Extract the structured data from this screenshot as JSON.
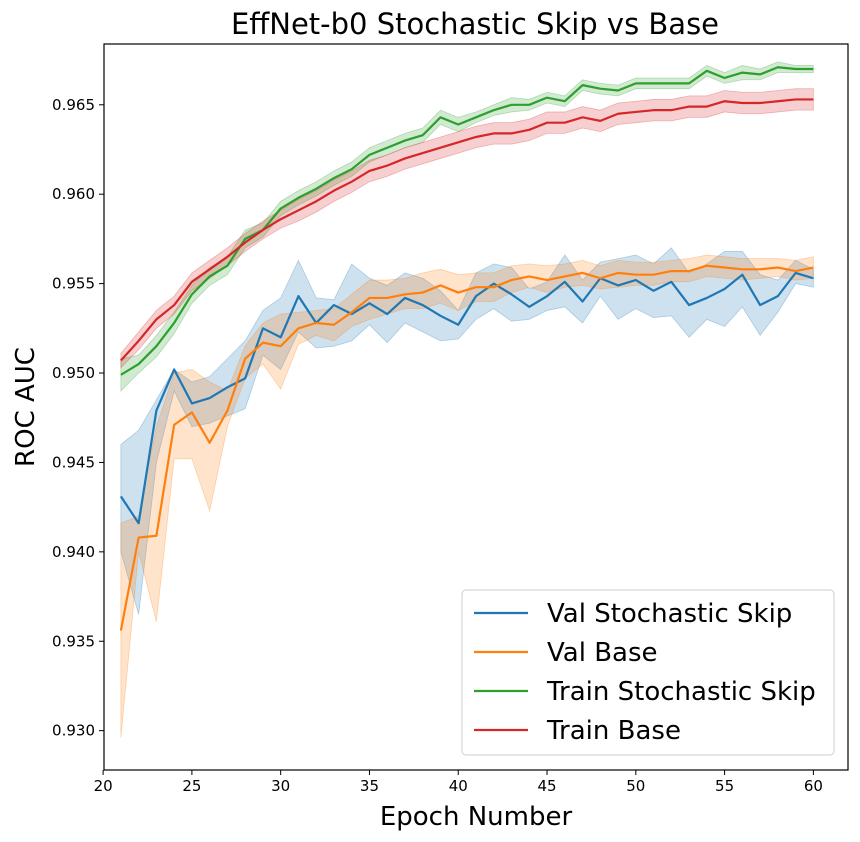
{
  "chart_data": {
    "type": "line",
    "title": "EffNet-b0 Stochastic Skip vs Base",
    "xlabel": "Epoch Number",
    "ylabel": "ROC AUC",
    "xlim": [
      20.05,
      61.95
    ],
    "ylim": [
      0.9278,
      0.9684
    ],
    "xticks": [
      20,
      25,
      30,
      35,
      40,
      45,
      50,
      55,
      60
    ],
    "yticks": [
      0.93,
      0.935,
      0.94,
      0.945,
      0.95,
      0.955,
      0.96,
      0.965
    ],
    "ytick_labels": [
      "0.930",
      "0.935",
      "0.940",
      "0.945",
      "0.950",
      "0.955",
      "0.960",
      "0.965"
    ],
    "legend_position": "lower-right",
    "x": [
      21,
      22,
      23,
      24,
      25,
      26,
      27,
      28,
      29,
      30,
      31,
      32,
      33,
      34,
      35,
      36,
      37,
      38,
      39,
      40,
      41,
      42,
      43,
      44,
      45,
      46,
      47,
      48,
      49,
      50,
      51,
      52,
      53,
      54,
      55,
      56,
      57,
      58,
      59,
      60
    ],
    "series": [
      {
        "name": "Val Stochastic Skip",
        "color": "#1f77b4",
        "values": [
          0.9431,
          0.9416,
          0.9479,
          0.9502,
          0.9483,
          0.9486,
          0.9492,
          0.9497,
          0.9525,
          0.952,
          0.9543,
          0.9528,
          0.9538,
          0.9533,
          0.9539,
          0.9533,
          0.9542,
          0.9538,
          0.9532,
          0.9527,
          0.9543,
          0.955,
          0.9544,
          0.9537,
          0.9543,
          0.9551,
          0.954,
          0.9553,
          0.9549,
          0.9552,
          0.9546,
          0.9551,
          0.9538,
          0.9542,
          0.9547,
          0.9555,
          0.9538,
          0.9543,
          0.9556,
          0.9553
        ],
        "lower": [
          0.94,
          0.9365,
          0.945,
          0.949,
          0.947,
          0.9472,
          0.9476,
          0.948,
          0.951,
          0.9502,
          0.9523,
          0.9514,
          0.9515,
          0.9518,
          0.9527,
          0.9517,
          0.9528,
          0.9523,
          0.9518,
          0.9519,
          0.953,
          0.9536,
          0.9529,
          0.953,
          0.9535,
          0.9537,
          0.9528,
          0.9543,
          0.953,
          0.9536,
          0.9531,
          0.9532,
          0.952,
          0.953,
          0.9526,
          0.9537,
          0.9521,
          0.9534,
          0.955,
          0.9548
        ],
        "upper": [
          0.946,
          0.9468,
          0.9485,
          0.9502,
          0.9495,
          0.9498,
          0.9508,
          0.9518,
          0.9535,
          0.9542,
          0.9563,
          0.9542,
          0.9541,
          0.9561,
          0.9553,
          0.9549,
          0.9556,
          0.9553,
          0.9546,
          0.9535,
          0.9556,
          0.9561,
          0.9559,
          0.9547,
          0.9551,
          0.9566,
          0.9552,
          0.9562,
          0.9564,
          0.9566,
          0.9561,
          0.957,
          0.9556,
          0.9561,
          0.9568,
          0.9568,
          0.9555,
          0.9552,
          0.9563,
          0.9558
        ]
      },
      {
        "name": "Val Base",
        "color": "#ff7f0e",
        "values": [
          0.9356,
          0.9408,
          0.9409,
          0.9471,
          0.9478,
          0.9461,
          0.9479,
          0.9508,
          0.9517,
          0.9515,
          0.9525,
          0.9528,
          0.9527,
          0.9534,
          0.9542,
          0.9542,
          0.9544,
          0.9545,
          0.9549,
          0.9545,
          0.9548,
          0.9548,
          0.9552,
          0.9554,
          0.9552,
          0.9554,
          0.9556,
          0.9553,
          0.9556,
          0.9555,
          0.9555,
          0.9557,
          0.9557,
          0.956,
          0.9559,
          0.9558,
          0.9558,
          0.9559,
          0.9557,
          0.9559
        ],
        "lower": [
          0.9296,
          0.94,
          0.9361,
          0.9452,
          0.9452,
          0.9423,
          0.947,
          0.9497,
          0.9505,
          0.9491,
          0.9516,
          0.9521,
          0.9518,
          0.9526,
          0.953,
          0.9533,
          0.9536,
          0.9536,
          0.9539,
          0.9535,
          0.954,
          0.954,
          0.9545,
          0.9548,
          0.9545,
          0.9548,
          0.9549,
          0.9547,
          0.9548,
          0.9549,
          0.9549,
          0.9551,
          0.9551,
          0.9554,
          0.9553,
          0.9552,
          0.9553,
          0.9554,
          0.9552,
          0.9553
        ],
        "upper": [
          0.9416,
          0.942,
          0.947,
          0.95,
          0.9502,
          0.9495,
          0.949,
          0.9515,
          0.9528,
          0.9533,
          0.9534,
          0.9535,
          0.9536,
          0.9544,
          0.9552,
          0.9552,
          0.9553,
          0.9556,
          0.9558,
          0.9555,
          0.9556,
          0.9556,
          0.956,
          0.9561,
          0.956,
          0.9561,
          0.9563,
          0.956,
          0.9563,
          0.9562,
          0.9562,
          0.9563,
          0.9564,
          0.9566,
          0.9565,
          0.9564,
          0.9564,
          0.9564,
          0.9563,
          0.9565
        ]
      },
      {
        "name": "Train Stochastic Skip",
        "color": "#2ca02c",
        "values": [
          0.9499,
          0.9505,
          0.9515,
          0.9528,
          0.9544,
          0.9554,
          0.956,
          0.9575,
          0.958,
          0.9592,
          0.9598,
          0.9603,
          0.9609,
          0.9614,
          0.9622,
          0.9626,
          0.963,
          0.9633,
          0.9643,
          0.9639,
          0.9643,
          0.9647,
          0.965,
          0.965,
          0.9654,
          0.9652,
          0.9661,
          0.9659,
          0.9658,
          0.9662,
          0.9662,
          0.9662,
          0.9662,
          0.9669,
          0.9665,
          0.9668,
          0.9667,
          0.9671,
          0.967,
          0.967
        ],
        "lower": [
          0.949,
          0.95,
          0.9509,
          0.9522,
          0.9539,
          0.9549,
          0.9555,
          0.957,
          0.9576,
          0.9588,
          0.9594,
          0.9599,
          0.9605,
          0.961,
          0.9618,
          0.9622,
          0.9626,
          0.9629,
          0.9639,
          0.9635,
          0.964,
          0.9644,
          0.9646,
          0.9647,
          0.9651,
          0.9649,
          0.9658,
          0.9656,
          0.9655,
          0.9659,
          0.9659,
          0.9659,
          0.9659,
          0.9666,
          0.9662,
          0.9664,
          0.9664,
          0.9668,
          0.9668,
          0.9668
        ],
        "upper": [
          0.9508,
          0.951,
          0.9521,
          0.9534,
          0.9549,
          0.9559,
          0.9565,
          0.958,
          0.9584,
          0.9596,
          0.9602,
          0.9607,
          0.9613,
          0.9618,
          0.9626,
          0.963,
          0.9634,
          0.9637,
          0.9647,
          0.9643,
          0.9646,
          0.965,
          0.9654,
          0.9653,
          0.9657,
          0.9655,
          0.9664,
          0.9662,
          0.9661,
          0.9665,
          0.9665,
          0.9665,
          0.9665,
          0.9672,
          0.9668,
          0.9672,
          0.967,
          0.9674,
          0.9672,
          0.9672
        ]
      },
      {
        "name": "Train Base",
        "color": "#d62728",
        "values": [
          0.9507,
          0.9518,
          0.953,
          0.9538,
          0.9551,
          0.9558,
          0.9565,
          0.9573,
          0.958,
          0.9586,
          0.9591,
          0.9596,
          0.9602,
          0.9607,
          0.9613,
          0.9616,
          0.962,
          0.9623,
          0.9626,
          0.9629,
          0.9632,
          0.9634,
          0.9634,
          0.9636,
          0.964,
          0.964,
          0.9643,
          0.9641,
          0.9645,
          0.9646,
          0.9647,
          0.9647,
          0.9649,
          0.9649,
          0.9652,
          0.9651,
          0.9651,
          0.9652,
          0.9653,
          0.9653
        ],
        "lower": [
          0.9503,
          0.9513,
          0.9525,
          0.9533,
          0.9546,
          0.9553,
          0.956,
          0.9568,
          0.9575,
          0.9581,
          0.9585,
          0.959,
          0.9596,
          0.9601,
          0.9607,
          0.961,
          0.9614,
          0.9617,
          0.962,
          0.9623,
          0.9626,
          0.9628,
          0.9628,
          0.963,
          0.9634,
          0.9634,
          0.9637,
          0.9635,
          0.9639,
          0.964,
          0.9641,
          0.9641,
          0.9643,
          0.9643,
          0.9646,
          0.9645,
          0.9645,
          0.9646,
          0.9647,
          0.9647
        ],
        "upper": [
          0.9511,
          0.9523,
          0.9535,
          0.9543,
          0.9556,
          0.9563,
          0.957,
          0.9578,
          0.9585,
          0.9591,
          0.9597,
          0.9602,
          0.9608,
          0.9613,
          0.9619,
          0.9622,
          0.9626,
          0.9629,
          0.9632,
          0.9635,
          0.9638,
          0.964,
          0.964,
          0.9642,
          0.9646,
          0.9646,
          0.9649,
          0.9647,
          0.9651,
          0.9652,
          0.9653,
          0.9653,
          0.9655,
          0.9655,
          0.9658,
          0.9657,
          0.9657,
          0.9658,
          0.9659,
          0.9659
        ]
      }
    ]
  }
}
